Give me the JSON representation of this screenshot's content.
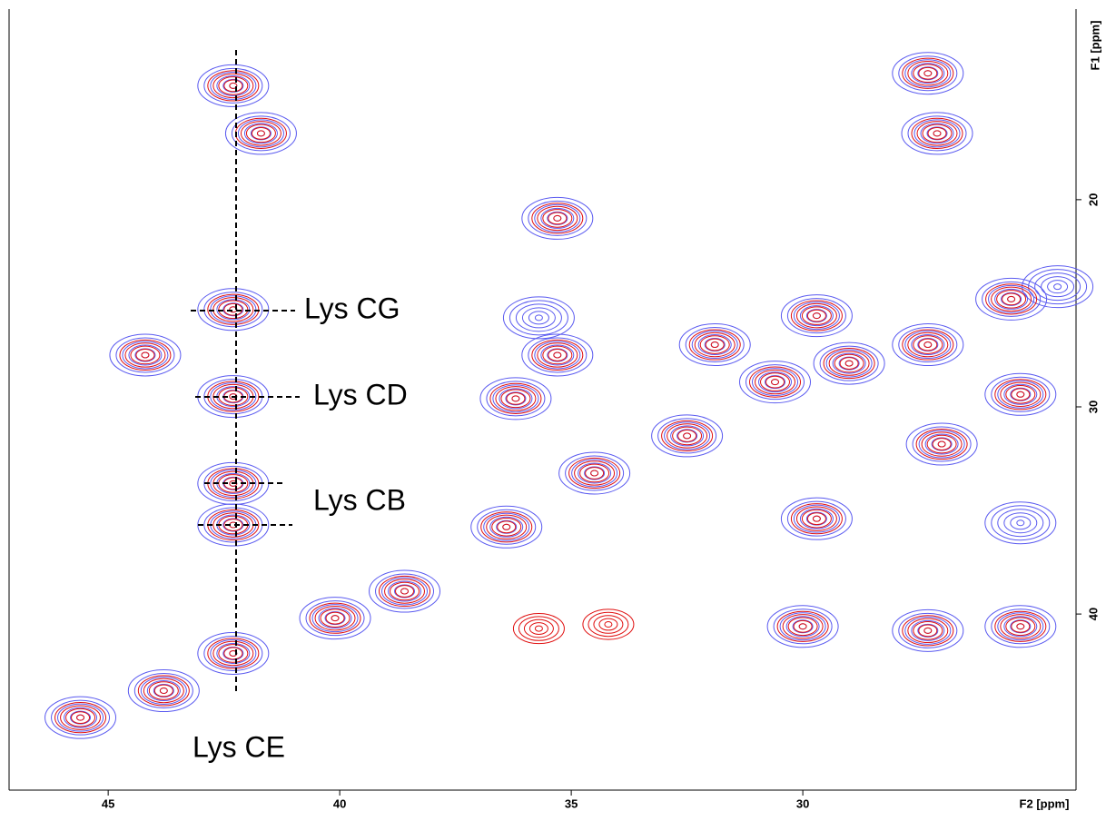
{
  "chart_data": {
    "type": "contour",
    "x_label": "F2 [ppm]",
    "y_label": "F1 [ppm]",
    "xlim": [
      47.14,
      24.1
    ],
    "ylim": [
      10.8,
      48.5
    ],
    "xticks": [
      45,
      40,
      35,
      30
    ],
    "yticks": [
      20,
      30,
      40
    ],
    "series": [
      {
        "color": "#5a5af0",
        "x": [
          42.3,
          41.7,
          35.3,
          27.3,
          27.1,
          29.7,
          35.7,
          35.3,
          36.2,
          31.9,
          25.3,
          27.0,
          29.7,
          25.3,
          30.0,
          27.3,
          25.3,
          42.3,
          44.2,
          42.3,
          42.3,
          42.3,
          45.6,
          43.8,
          42.3,
          40.1,
          38.6,
          36.4,
          34.5,
          32.5,
          30.6,
          29.0,
          27.3,
          25.5,
          24.5
        ],
        "y": [
          14.5,
          16.8,
          20.9,
          13.9,
          16.8,
          25.6,
          25.7,
          27.5,
          29.6,
          27.0,
          29.4,
          31.8,
          35.4,
          35.6,
          40.6,
          40.8,
          40.6,
          25.3,
          27.5,
          29.5,
          33.7,
          35.7,
          45.0,
          43.7,
          41.9,
          40.2,
          38.9,
          35.8,
          33.2,
          31.4,
          28.8,
          27.9,
          27.0,
          24.8,
          24.2
        ]
      },
      {
        "color": "#e01010",
        "x": [
          42.3,
          41.7,
          35.3,
          27.3,
          27.1,
          29.7,
          35.3,
          36.2,
          31.9,
          25.3,
          27.0,
          29.7,
          30.0,
          27.3,
          25.3,
          35.7,
          34.2,
          42.3,
          44.2,
          42.3,
          42.3,
          42.3,
          45.6,
          43.8,
          42.3,
          40.1,
          38.6,
          36.4,
          34.5,
          32.5,
          30.6,
          29.0,
          27.3,
          25.5
        ],
        "y": [
          14.5,
          16.8,
          20.9,
          13.9,
          16.8,
          25.6,
          27.5,
          29.6,
          27.0,
          29.4,
          31.8,
          35.4,
          40.6,
          40.8,
          40.6,
          40.7,
          40.5,
          25.3,
          27.5,
          29.5,
          33.7,
          35.7,
          45.0,
          43.7,
          41.9,
          40.2,
          38.9,
          35.8,
          33.2,
          31.4,
          28.8,
          27.9,
          27.0,
          24.8
        ]
      }
    ],
    "annotations": [
      "Lys CG",
      "Lys CD",
      "Lys CB",
      "Lys CE"
    ]
  }
}
